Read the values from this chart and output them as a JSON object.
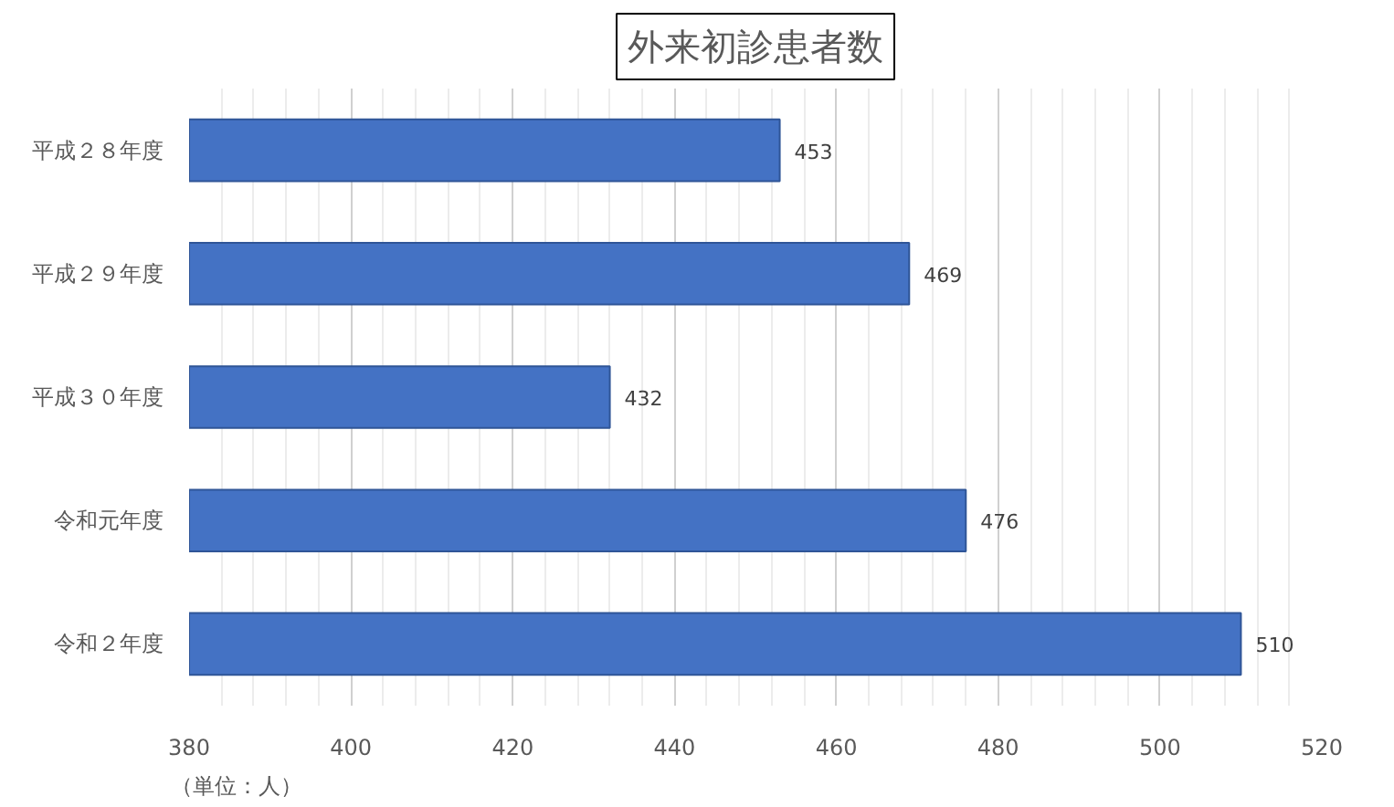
{
  "chart_data": {
    "type": "bar",
    "orientation": "horizontal",
    "title": "外来初診患者数",
    "categories": [
      "平成２８年度",
      "平成２９年度",
      "平成３０年度",
      "令和元年度",
      "令和２年度"
    ],
    "values": [
      453,
      469,
      432,
      476,
      510
    ],
    "color": "#4472c4",
    "xlim": [
      380,
      520
    ],
    "xticks": [
      380,
      {
        "value": 384,
        "label": null
      },
      {
        "value": 388,
        "label": null
      },
      {
        "value": 392,
        "label": null
      },
      {
        "value": 396,
        "label": null
      },
      400,
      {
        "value": 404,
        "label": null
      },
      {
        "value": 408,
        "label": null
      },
      {
        "value": 412,
        "label": null
      },
      {
        "value": 416,
        "label": null
      },
      420,
      {
        "value": 424,
        "label": null
      },
      {
        "value": 428,
        "label": null
      },
      {
        "value": 432,
        "label": null
      },
      {
        "value": 436,
        "label": null
      },
      440,
      {
        "value": 444,
        "label": null
      },
      {
        "value": 448,
        "label": null
      },
      {
        "value": 452,
        "label": null
      },
      {
        "value": 456,
        "label": null
      },
      460,
      {
        "value": 464,
        "label": null
      },
      {
        "value": 468,
        "label": null
      },
      {
        "value": 472,
        "label": null
      },
      {
        "value": 476,
        "label": null
      },
      480,
      {
        "value": 484,
        "label": null
      },
      {
        "value": 488,
        "label": null
      },
      {
        "value": 492,
        "label": null
      },
      {
        "value": 496,
        "label": null
      },
      500,
      {
        "value": 504,
        "label": null
      },
      {
        "value": 508,
        "label": null
      },
      {
        "value": 512,
        "label": null
      },
      {
        "value": 516,
        "label": null
      },
      520
    ],
    "grid": "x",
    "data_labels": true,
    "annotations": [
      "（単位：人）"
    ]
  }
}
